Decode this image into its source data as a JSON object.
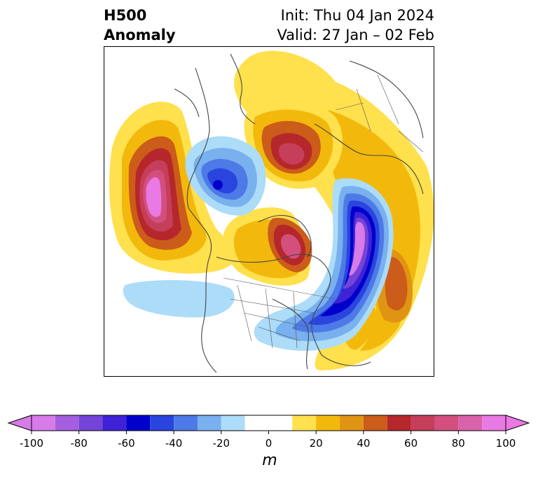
{
  "title": {
    "left_line1": "H500",
    "left_line2": "Anomaly",
    "right_line1": "Init: Thu 04 Jan 2024",
    "right_line2": "Valid: 27 Jan – 02 Feb"
  },
  "colorbar": {
    "unit": "m",
    "ticks": [
      "-100",
      "-80",
      "-60",
      "-40",
      "-20",
      "0",
      "20",
      "40",
      "60",
      "80",
      "100"
    ],
    "tick_values": [
      -100,
      -80,
      -60,
      -40,
      -20,
      0,
      20,
      40,
      60,
      80,
      100
    ],
    "levels": [
      -100,
      -90,
      -80,
      -70,
      -60,
      -50,
      -40,
      -30,
      -20,
      -10,
      10,
      20,
      30,
      40,
      50,
      60,
      70,
      80,
      90,
      100
    ],
    "colors": [
      "#d77be8",
      "#a65ee0",
      "#7444d8",
      "#3f22d6",
      "#0000cd",
      "#2a45de",
      "#4d7ae7",
      "#79b0ee",
      "#acdcf8",
      "#ffffff",
      "#ffe04d",
      "#f2b90c",
      "#e09413",
      "#cb5c1a",
      "#b5272a",
      "#c53e5a",
      "#d24f7e",
      "#da62aa",
      "#e979e3"
    ],
    "extend_low_color": "#d77be8",
    "extend_high_color": "#e979e3"
  }
}
